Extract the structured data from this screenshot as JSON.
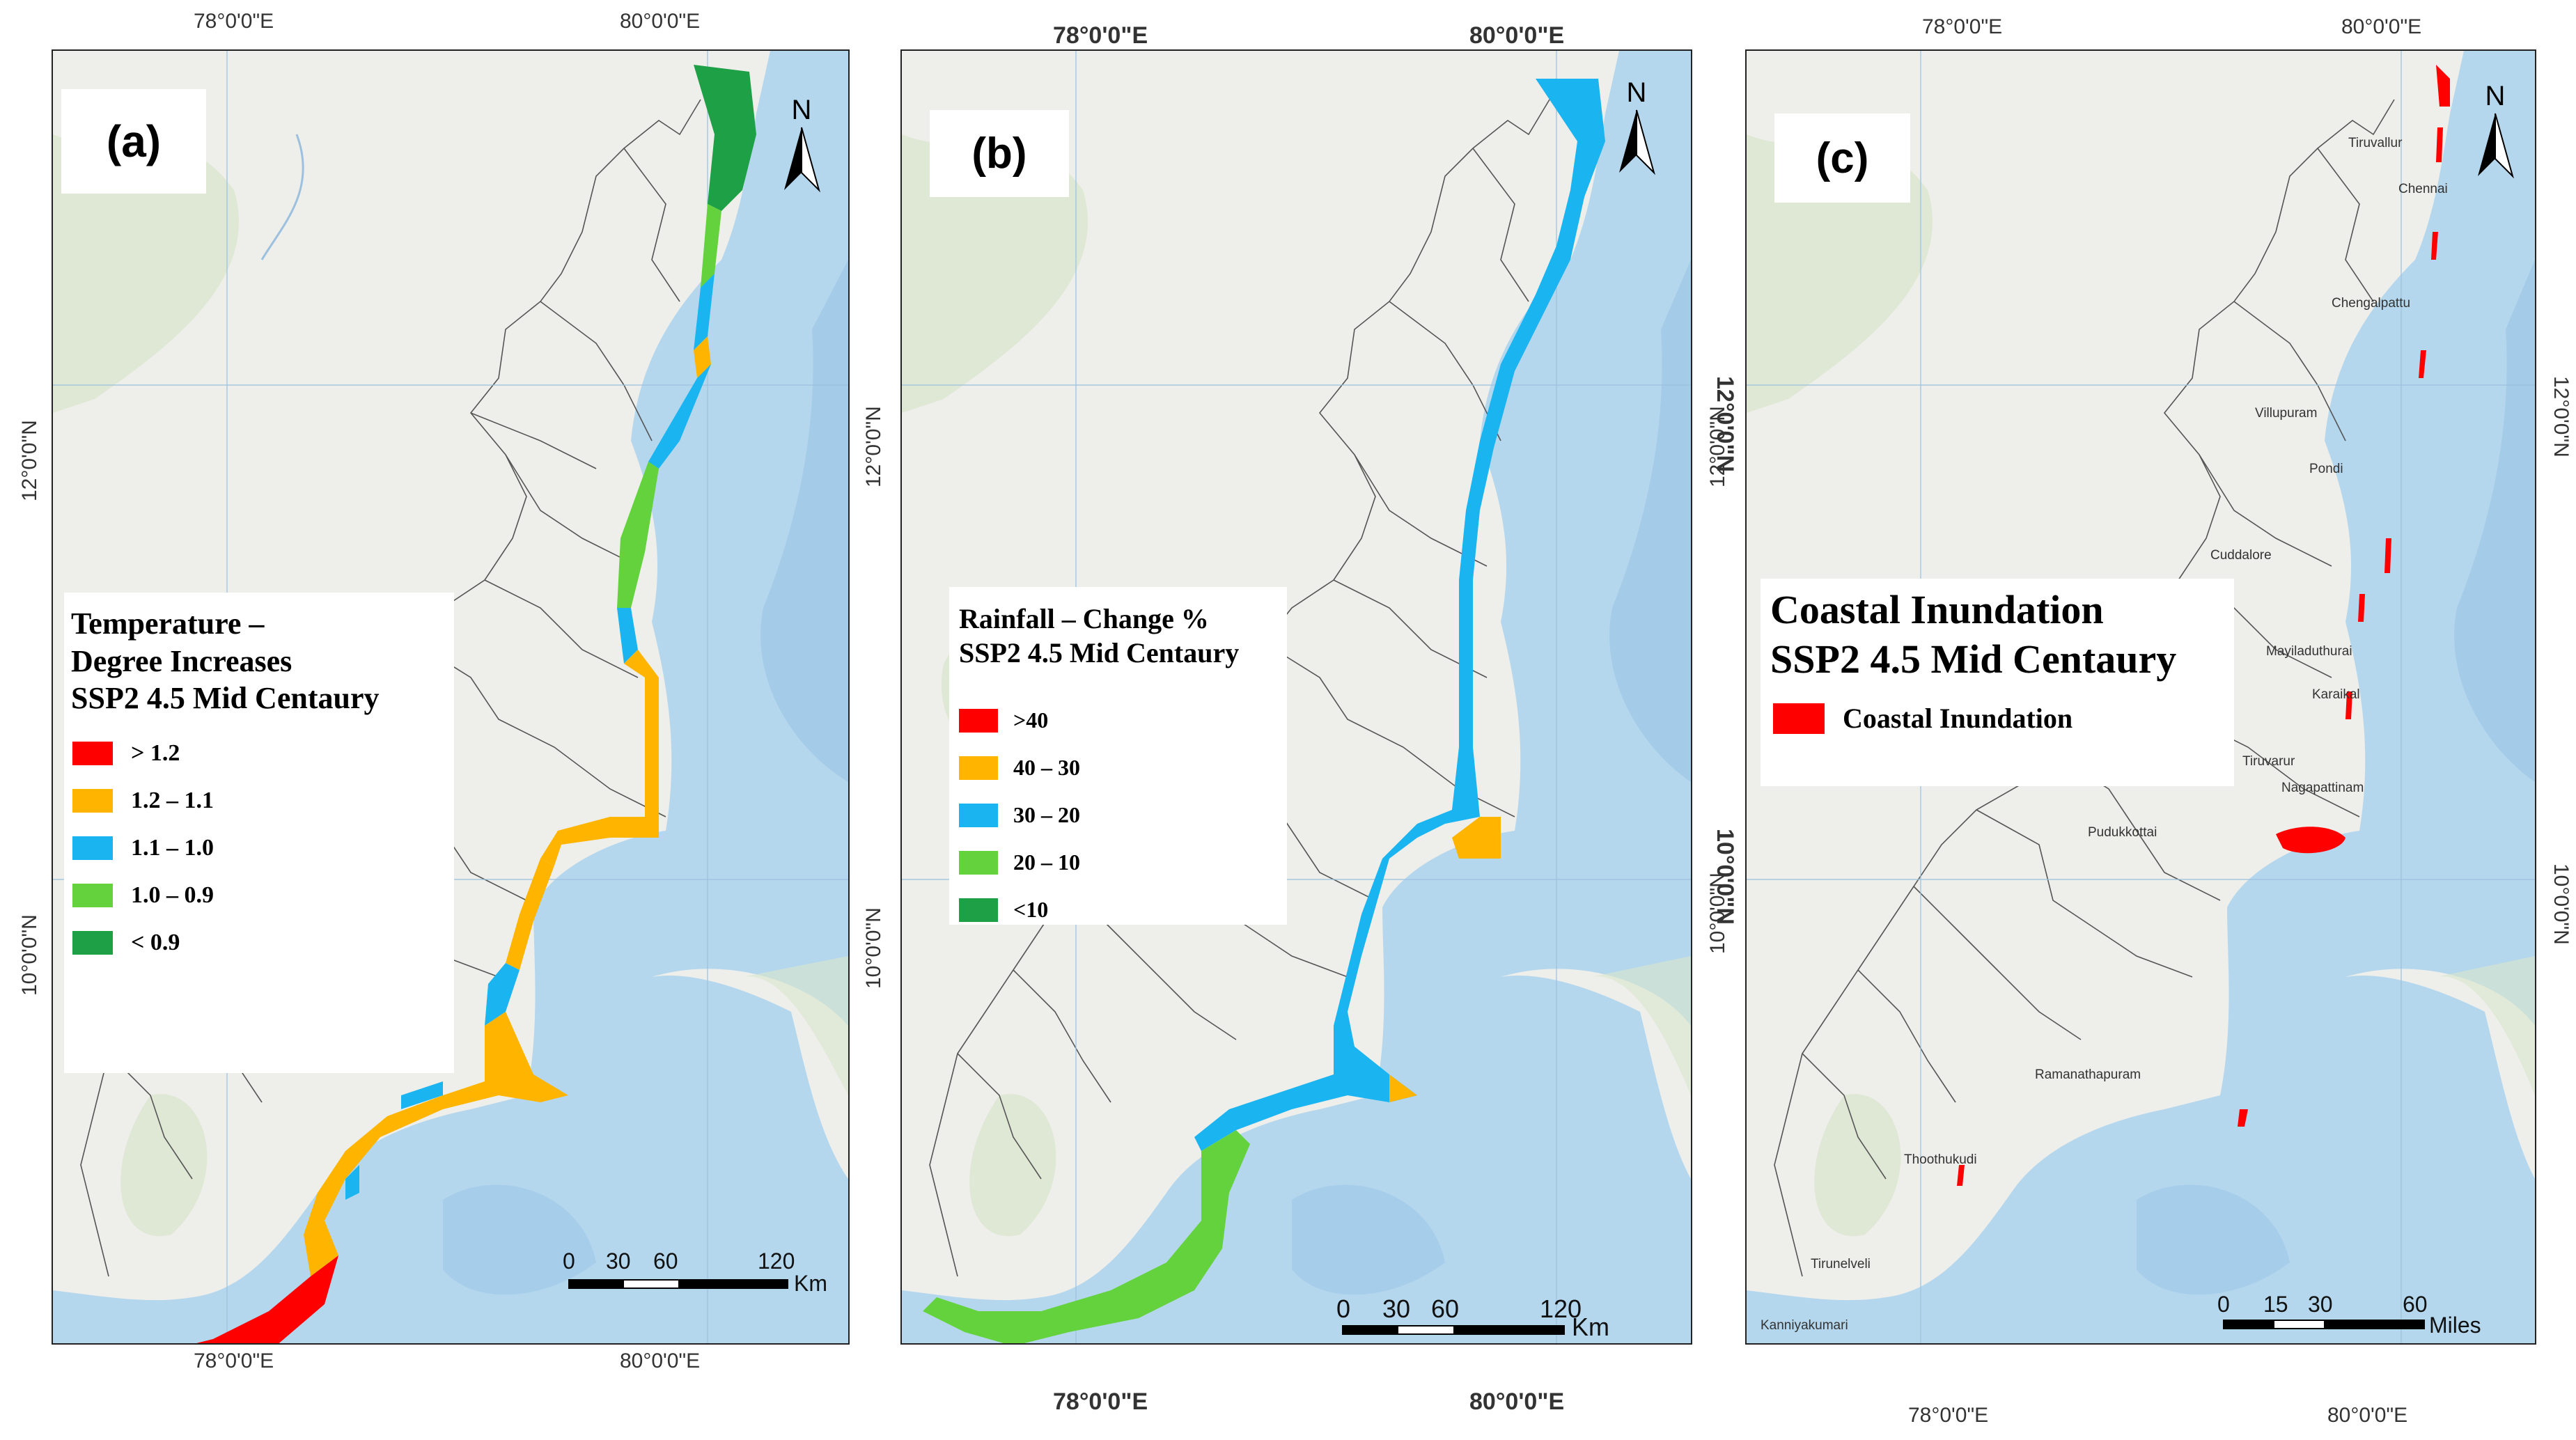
{
  "panels": [
    {
      "tag": "(a)",
      "top_lon": [
        "78°0'0\"E",
        "80°0'0\"E"
      ],
      "bottom_lon": [
        "78°0'0\"E",
        "80°0'0\"E"
      ],
      "left_lat": [
        "12°0'0\"N",
        "10°0'0\"N"
      ],
      "right_lat": [
        "12°0'0\"N",
        "10°0'0\"N"
      ],
      "legend": {
        "title": [
          "Temperature –",
          "Degree  Increases",
          "SSP2 4.5 Mid Centaury"
        ],
        "items": [
          {
            "label": "> 1.2",
            "color": "#ff0000"
          },
          {
            "label": "1.2 – 1.1",
            "color": "#ffb400"
          },
          {
            "label": "1.1 – 1.0",
            "color": "#1ab4f0"
          },
          {
            "label": "1.0 – 0.9",
            "color": "#64d23c"
          },
          {
            "label": "< 0.9",
            "color": "#1ea046"
          }
        ]
      },
      "north": "N",
      "scale": {
        "ticks": [
          "0",
          "30",
          "60",
          "120"
        ],
        "unit": "Km"
      }
    },
    {
      "tag": "(b)",
      "top_lon": [
        "78°0'0\"E",
        "80°0'0\"E"
      ],
      "bottom_lon": [
        "78°0'0\"E",
        "80°0'0\"E"
      ],
      "left_lat": [
        "12°0'0\"N",
        "10°0'0\"N"
      ],
      "right_lat": [
        "12°0'0\"N",
        "10°0'0\"N"
      ],
      "legend": {
        "title": [
          "Rainfall – Change %",
          "SSP2 4.5 Mid Centaury"
        ],
        "items": [
          {
            "label": ">40",
            "color": "#ff0000"
          },
          {
            "label": "40 – 30",
            "color": "#ffb400"
          },
          {
            "label": "30 – 20",
            "color": "#1ab4f0"
          },
          {
            "label": "20 – 10",
            "color": "#64d23c"
          },
          {
            "label": "<10",
            "color": "#1ea046"
          }
        ]
      },
      "north": "N",
      "scale": {
        "ticks": [
          "0",
          "30",
          "60",
          "120"
        ],
        "unit": "Km"
      }
    },
    {
      "tag": "(c)",
      "top_lon": [
        "78°0'0\"E",
        "80°0'0\"E"
      ],
      "bottom_lon": [
        "78°0'0\"E",
        "80°0'0\"E"
      ],
      "left_lat": [
        "12°0'0\"N",
        "10°0'0\"N"
      ],
      "right_lat": [
        "12°0'0\"N",
        "10°0'0\"N"
      ],
      "legend": {
        "title": [
          "Coastal Inundation",
          "SSP2 4.5 Mid Centaury"
        ],
        "items": [
          {
            "label": "Coastal Inundation",
            "color": "#ff0000"
          }
        ]
      },
      "north": "N",
      "scale": {
        "ticks": [
          "0",
          "15",
          "30",
          "60"
        ],
        "unit": "Miles"
      },
      "towns": [
        "Tiruvallur",
        "Chennai",
        "Chengalpattu",
        "Villupuram",
        "Pondi",
        "Cuddalore",
        "Mayiladuthurai",
        "Karaikal",
        "Tiruvarur",
        "Nagapattinam",
        "Pudukkottai",
        "Ramanathapuram",
        "Thoothukudi",
        "Tirunelveli",
        "Kanniyakumari"
      ]
    }
  ],
  "colors": {
    "sea": "#b4d7ee",
    "land": "#eeeeea",
    "hills": "#d9e6cc",
    "boundary": "#555555",
    "inundation": "#ff0000"
  }
}
